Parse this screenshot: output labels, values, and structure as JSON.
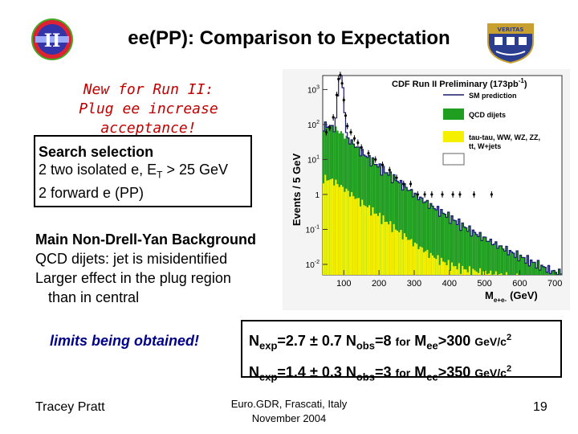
{
  "slide": {
    "title": "ee(PP): Comparison to Expectation",
    "note_line1": "New for Run II:",
    "note_line2": "Plug ee increase acceptance!",
    "search": {
      "header": "Search selection",
      "line2_pre": "2 two isolated e, E",
      "line2_sub": "T",
      "line2_post": " > 25 GeV",
      "line3": "2 forward e (PP)"
    },
    "background": {
      "header": "Main Non-Drell-Yan Background",
      "line1": "QCD dijets: jet is misidentified",
      "line2": "Larger effect in the plug region",
      "line3": "than in central"
    },
    "limits_text": "limits being obtained!",
    "results": {
      "r1": {
        "n": "N",
        "exp": "exp",
        "val": "=2.7 ± 0.7",
        "nobs": "N",
        "obs": "obs",
        "obsval": "=8",
        "for": "for",
        "m": "M",
        "ee": "ee",
        "cut": ">300",
        "unit": "GeV/c",
        "pow": "2"
      },
      "r2": {
        "n": "N",
        "exp": "exp",
        "val": "=1.4 ± 0.3",
        "nobs": "N",
        "obs": "obs",
        "obsval": "=3",
        "for": "for",
        "m": "M",
        "ee": "ee",
        "cut": ">350",
        "unit": "GeV/c",
        "pow": "2"
      }
    },
    "author": "Tracey Pratt",
    "venue": "Euro.GDR, Frascati, Italy",
    "date": "November 2004",
    "page": "19"
  },
  "logos": {
    "left_text": "II",
    "right_motto": "VERITAS"
  },
  "chart_data": {
    "type": "histogram",
    "title": "CDF Run II Preliminary (173pb",
    "title_sup": "-1",
    "title_close": ")",
    "ylabel": "Events / 5 GeV",
    "xlabel": "M",
    "xlabel_sub": "e+e-",
    "xlabel_unit": "(GeV)",
    "x_ticks": [
      100,
      200,
      300,
      400,
      500,
      600,
      700
    ],
    "y_ticks": [
      {
        "base": "10",
        "exp": "3",
        "value": 1000
      },
      {
        "base": "10",
        "exp": "2",
        "value": 100
      },
      {
        "base": "10",
        "exp": "1",
        "value": 10
      },
      {
        "base": "1",
        "exp": "",
        "value": 1
      },
      {
        "base": "10",
        "exp": "-1",
        "value": 0.1
      },
      {
        "base": "10",
        "exp": "-2",
        "value": 0.01
      }
    ],
    "xlim": [
      40,
      720
    ],
    "ylim_log10": [
      -2.3,
      3.4
    ],
    "legend": [
      {
        "label": "SM prediction",
        "style": "line",
        "color": "#1a1a6e"
      },
      {
        "label": "QCD dijets",
        "style": "fill",
        "color": "#1f9e1f"
      },
      {
        "label": "tau-tau, WW, WZ, ZZ,",
        "label2": "tt, W+jets",
        "style": "fill",
        "color": "#f5f000"
      },
      {
        "label": "",
        "style": "fill",
        "color": "#ffffff"
      }
    ],
    "colors": {
      "sm": "#1a1a6e",
      "qcd": "#1f9e1f",
      "other": "#f5f000",
      "data": "#000000"
    },
    "bin_width": 5,
    "green_anchors": [
      [
        40,
        90
      ],
      [
        60,
        90
      ],
      [
        90,
        60
      ],
      [
        120,
        32
      ],
      [
        150,
        16
      ],
      [
        200,
        6
      ],
      [
        250,
        2.5
      ],
      [
        300,
        1.0
      ],
      [
        350,
        0.45
      ],
      [
        400,
        0.22
      ],
      [
        450,
        0.1
      ],
      [
        500,
        0.05
      ],
      [
        550,
        0.025
      ],
      [
        600,
        0.013
      ],
      [
        650,
        0.007
      ],
      [
        700,
        0.004
      ]
    ],
    "yellow_anchors": [
      [
        40,
        3
      ],
      [
        70,
        2.5
      ],
      [
        100,
        1.5
      ],
      [
        150,
        0.6
      ],
      [
        200,
        0.25
      ],
      [
        250,
        0.1
      ],
      [
        300,
        0.04
      ],
      [
        350,
        0.018
      ],
      [
        400,
        0.01
      ],
      [
        450,
        0.007
      ],
      [
        500,
        0.006
      ],
      [
        550,
        0.005
      ],
      [
        600,
        0.004
      ],
      [
        650,
        0.003
      ],
      [
        700,
        0.002
      ]
    ],
    "z_peak": {
      "center": 91,
      "height": 2500,
      "width": 5
    },
    "data_points": [
      [
        50,
        60
      ],
      [
        60,
        80
      ],
      [
        70,
        160
      ],
      [
        80,
        700
      ],
      [
        85,
        2000
      ],
      [
        90,
        2600
      ],
      [
        95,
        1500
      ],
      [
        100,
        500
      ],
      [
        105,
        180
      ],
      [
        110,
        90
      ],
      [
        120,
        60
      ],
      [
        130,
        40
      ],
      [
        140,
        30
      ],
      [
        150,
        22
      ],
      [
        170,
        15
      ],
      [
        190,
        10
      ],
      [
        210,
        7
      ],
      [
        230,
        5
      ],
      [
        250,
        3
      ],
      [
        270,
        2
      ],
      [
        290,
        2
      ],
      [
        310,
        1
      ],
      [
        330,
        1
      ],
      [
        350,
        1
      ],
      [
        380,
        1
      ],
      [
        410,
        1
      ],
      [
        430,
        1
      ],
      [
        470,
        1
      ],
      [
        520,
        1
      ]
    ]
  }
}
